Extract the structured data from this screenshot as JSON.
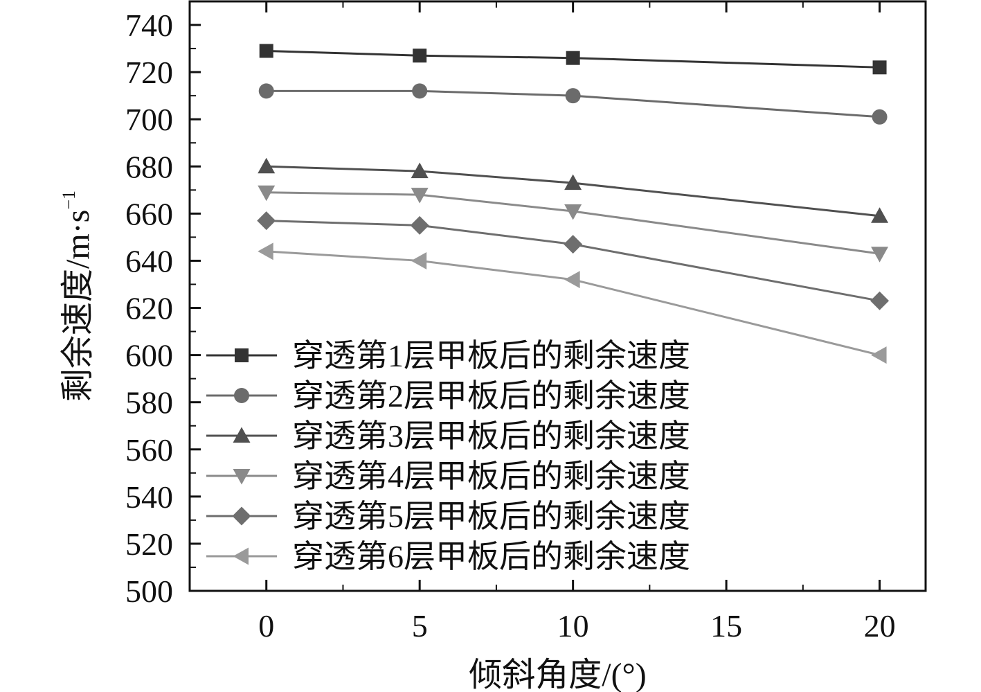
{
  "chart_data": {
    "type": "line",
    "title": "",
    "xlabel": "倾斜角度/(°)",
    "ylabel": "剩余速度/m·s",
    "ylabel_superscript": "−1",
    "x": [
      0,
      5,
      10,
      20
    ],
    "xlim": [
      -2.5,
      21.5
    ],
    "ylim": [
      500,
      750
    ],
    "xticks": [
      0,
      5,
      10,
      15,
      20
    ],
    "yticks": [
      500,
      520,
      540,
      560,
      580,
      600,
      620,
      640,
      660,
      680,
      700,
      720,
      740
    ],
    "legend_position": "bottom-left",
    "grid": false,
    "series": [
      {
        "name": "穿透第1层甲板后的剩余速度",
        "marker": "square",
        "color": "#333333",
        "values": [
          729,
          727,
          726,
          722
        ]
      },
      {
        "name": "穿透第2层甲板后的剩余速度",
        "marker": "circle",
        "color": "#6b6b6b",
        "values": [
          712,
          712,
          710,
          701
        ]
      },
      {
        "name": "穿透第3层甲板后的剩余速度",
        "marker": "triangle-up",
        "color": "#505050",
        "values": [
          680,
          678,
          673,
          659
        ]
      },
      {
        "name": "穿透第4层甲板后的剩余速度",
        "marker": "triangle-down",
        "color": "#8a8a8a",
        "values": [
          669,
          668,
          661,
          643
        ]
      },
      {
        "name": "穿透第5层甲板后的剩余速度",
        "marker": "diamond",
        "color": "#6e6e6e",
        "values": [
          657,
          655,
          647,
          623
        ]
      },
      {
        "name": "穿透第6层甲板后的剩余速度",
        "marker": "triangle-left",
        "color": "#9a9a9a",
        "values": [
          644,
          640,
          632,
          600
        ]
      }
    ]
  }
}
